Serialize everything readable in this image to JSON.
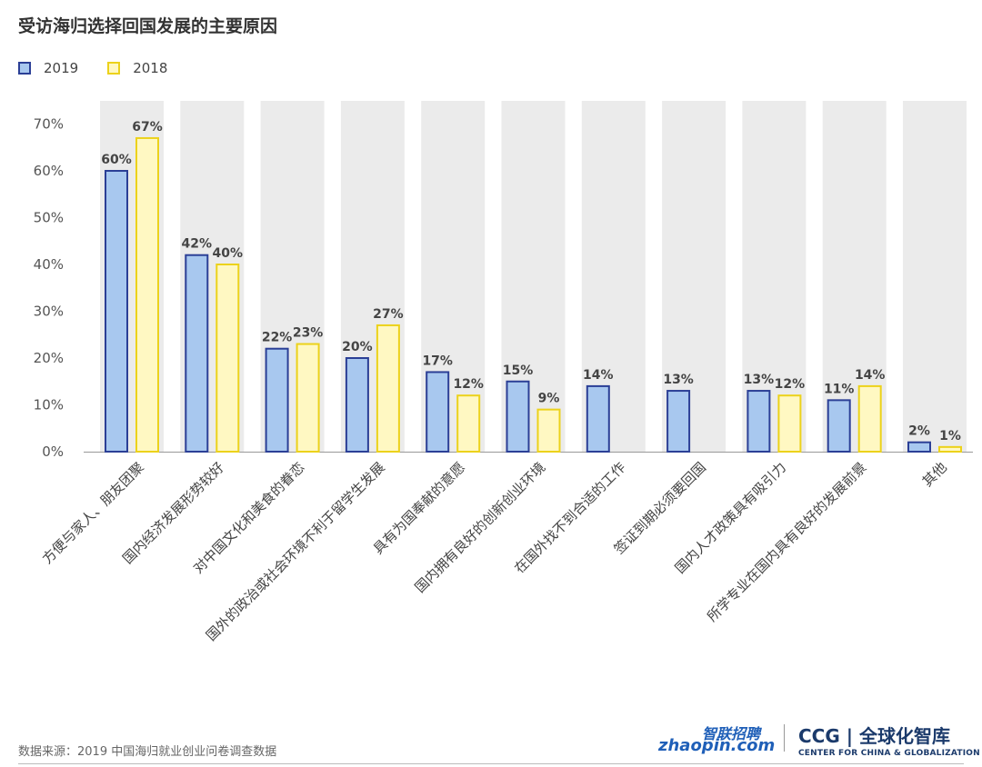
{
  "title": "受访海归选择回国发展的主要原因",
  "legend": [
    {
      "label": "2019",
      "fill": "#a8c8ef",
      "stroke": "#2b3f96"
    },
    {
      "label": "2018",
      "fill": "#fff8c2",
      "stroke": "#ecd21b"
    }
  ],
  "chart_data": {
    "type": "bar",
    "title": "受访海归选择回国发展的主要原因",
    "categories": [
      "方便与家人、朋友团聚",
      "国内经济发展形势较好",
      "对中国文化和美食的眷恋",
      "国外的政治或社会环境不利于留学生发展",
      "具有为国奉献的意愿",
      "国内拥有良好的创新创业环境",
      "在国外找不到合适的工作",
      "签证到期必须要回国",
      "国内人才政策具有吸引力",
      "所学专业在国内具有良好的发展前景",
      "其他"
    ],
    "series": [
      {
        "name": "2019",
        "values": [
          60,
          42,
          22,
          20,
          17,
          15,
          14,
          13,
          13,
          11,
          2
        ],
        "labels": [
          "60%",
          "42%",
          "22%",
          "20%",
          "17%",
          "15%",
          "14%",
          "13%",
          "13%",
          "11%",
          "2%"
        ]
      },
      {
        "name": "2018",
        "values": [
          67,
          40,
          23,
          27,
          12,
          9,
          null,
          null,
          12,
          14,
          1
        ],
        "labels": [
          "67%",
          "40%",
          "23%",
          "27%",
          "12%",
          "9%",
          "",
          "",
          "12%",
          "14%",
          "1%"
        ]
      }
    ],
    "ylim": [
      0,
      70
    ],
    "yticks": [
      "0%",
      "10%",
      "20%",
      "30%",
      "40%",
      "50%",
      "60%",
      "70%"
    ],
    "grid": false,
    "legend_position": "top-left",
    "colors": {
      "s2019_fill": "#a8c8ef",
      "s2019_stroke": "#2b3f96",
      "s2018_fill": "#fff8c2",
      "s2018_stroke": "#ecd21b",
      "column_bg": "#ebebeb",
      "axis": "#999999"
    }
  },
  "footer": {
    "source": "数据来源：2019 中国海归就业创业问卷调查数据",
    "logo_zhaopin_cn": "智联招聘",
    "logo_zhaopin_en": "zhaopin.com",
    "logo_ccg_main": "CCG | 全球化智库",
    "logo_ccg_sub": "CENTER FOR CHINA & GLOBALIZATION"
  }
}
